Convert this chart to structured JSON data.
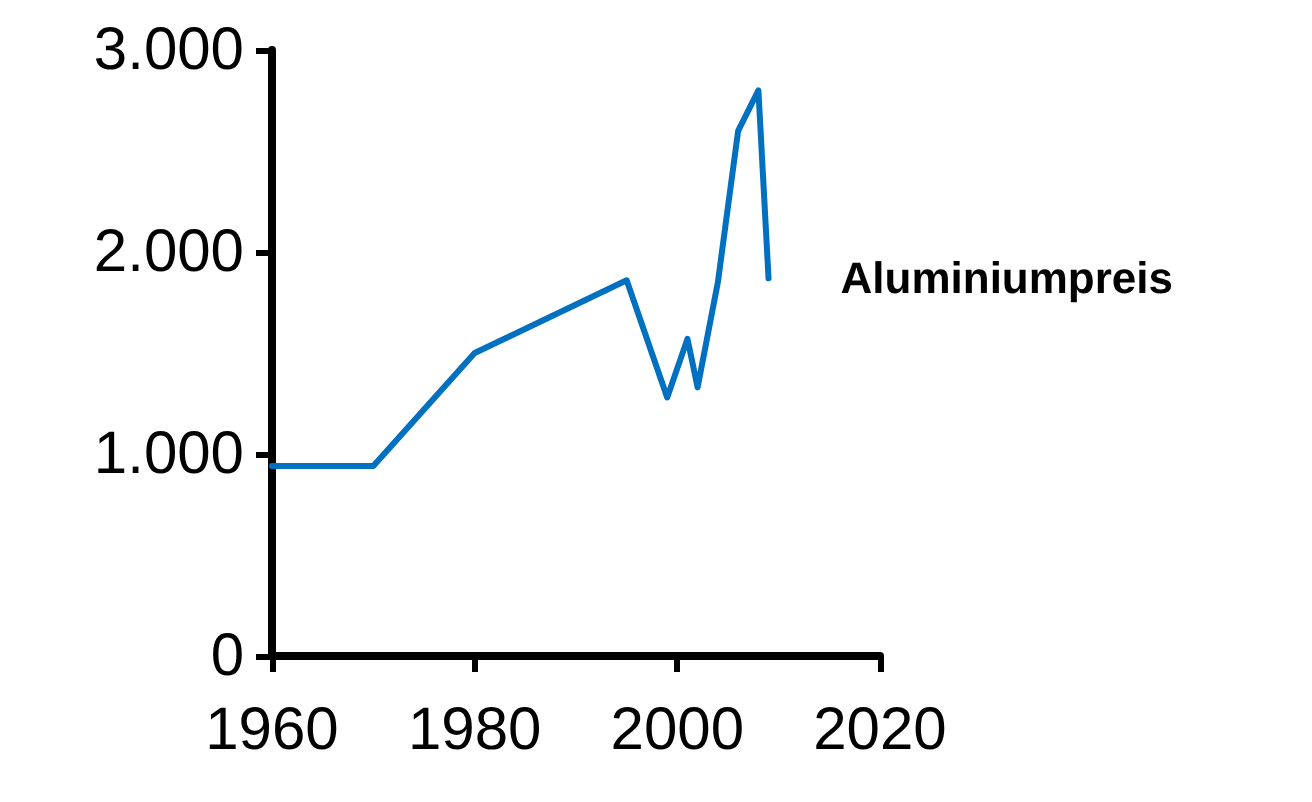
{
  "chart_data": {
    "type": "line",
    "x": [
      1960,
      1970,
      1980,
      1995,
      1999,
      2001,
      2002,
      2004,
      2006,
      2008,
      2009
    ],
    "series": [
      {
        "name": "Aluminiumpreis",
        "color": "#0070c0",
        "values": [
          940,
          940,
          1500,
          1860,
          1280,
          1570,
          1330,
          1850,
          2600,
          2800,
          1870
        ]
      }
    ],
    "xlim": [
      1960,
      2020
    ],
    "xticks": [
      1960,
      1980,
      2000,
      2020
    ],
    "ylim": [
      0,
      3000
    ],
    "yticks": [
      {
        "value": 0,
        "label": "0"
      },
      {
        "value": 1000,
        "label": "1.000"
      },
      {
        "value": 2000,
        "label": "2.000"
      },
      {
        "value": 3000,
        "label": "3.000"
      }
    ],
    "grid": false,
    "legend": false,
    "marker": "none",
    "line_style": "solid"
  }
}
